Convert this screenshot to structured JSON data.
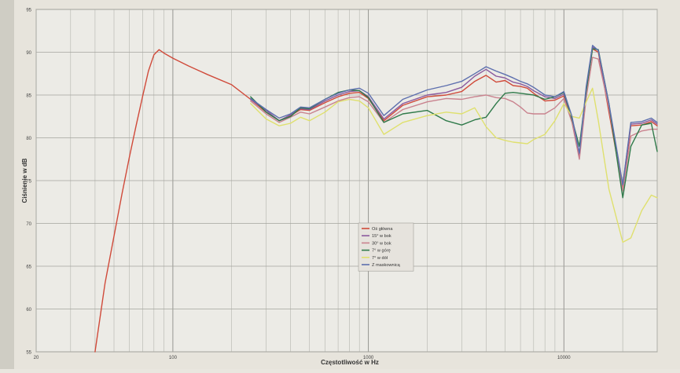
{
  "chart_data": {
    "type": "line",
    "title": "",
    "xlabel": "Częstotliwość w Hz",
    "ylabel": "Ciśnienie w dB",
    "x_scale": "log",
    "xlim": [
      20,
      30000
    ],
    "ylim": [
      55,
      95
    ],
    "x_ticks": [
      {
        "value": 20,
        "label": "20"
      },
      {
        "value": 100,
        "label": "100"
      },
      {
        "value": 1000,
        "label": "1000"
      },
      {
        "value": 10000,
        "label": "10000"
      }
    ],
    "y_ticks": [
      {
        "value": 55,
        "label": "55"
      },
      {
        "value": 60,
        "label": "60"
      },
      {
        "value": 65,
        "label": "65"
      },
      {
        "value": 70,
        "label": "70"
      },
      {
        "value": 75,
        "label": "75"
      },
      {
        "value": 80,
        "label": "80"
      },
      {
        "value": 85,
        "label": "85"
      },
      {
        "value": 90,
        "label": "90"
      },
      {
        "value": 95,
        "label": "95"
      }
    ],
    "grid": true,
    "legend_position": "center-bottom",
    "series": [
      {
        "name": "Oś główna",
        "color": "#d04a3a",
        "x": [
          40,
          45,
          50,
          55,
          60,
          65,
          70,
          75,
          80,
          85,
          90,
          100,
          120,
          150,
          200,
          250,
          300,
          350,
          400,
          450,
          500,
          600,
          700,
          800,
          900,
          1000,
          1200,
          1500,
          2000,
          2500,
          3000,
          3500,
          4000,
          4500,
          5000,
          5500,
          6000,
          6500,
          7000,
          8000,
          9000,
          10000,
          11000,
          12000,
          13000,
          14000,
          15000,
          17000,
          20000,
          22000,
          25000,
          28000,
          30000
        ],
        "y": [
          55.0,
          63.0,
          68.5,
          73.5,
          77.8,
          81.5,
          84.8,
          87.8,
          89.7,
          90.3,
          89.9,
          89.3,
          88.4,
          87.4,
          86.2,
          84.5,
          83.0,
          82.0,
          82.6,
          83.3,
          83.2,
          84.1,
          84.8,
          85.2,
          85.3,
          84.6,
          82.0,
          83.8,
          84.8,
          85.0,
          85.4,
          86.6,
          87.3,
          86.5,
          86.7,
          86.1,
          86.0,
          85.8,
          85.2,
          84.3,
          84.4,
          84.9,
          82.0,
          77.8,
          85.5,
          90.4,
          90.0,
          83.0,
          74.0,
          81.4,
          81.5,
          81.9,
          81.4
        ]
      },
      {
        "name": "15° w bok",
        "color": "#8a5a9e",
        "x": [
          250,
          300,
          350,
          400,
          450,
          500,
          600,
          700,
          800,
          900,
          1000,
          1200,
          1500,
          2000,
          2500,
          3000,
          3500,
          4000,
          4500,
          5000,
          5500,
          6000,
          6500,
          7000,
          8000,
          9000,
          10000,
          11000,
          12000,
          13000,
          14000,
          15000,
          17000,
          20000,
          22000,
          25000,
          28000,
          30000
        ],
        "y": [
          84.5,
          83.2,
          82.0,
          82.7,
          83.4,
          83.3,
          84.3,
          85.0,
          85.4,
          85.5,
          84.8,
          82.2,
          84.0,
          85.0,
          85.3,
          85.9,
          87.2,
          88.0,
          87.2,
          87.0,
          86.5,
          86.3,
          86.0,
          85.5,
          84.8,
          84.6,
          85.1,
          82.2,
          78.0,
          85.6,
          90.6,
          90.2,
          83.5,
          74.5,
          81.6,
          81.7,
          82.1,
          81.6
        ]
      },
      {
        "name": "30° w bok",
        "color": "#c9828e",
        "x": [
          250,
          300,
          350,
          400,
          450,
          500,
          600,
          700,
          800,
          900,
          1000,
          1200,
          1500,
          2000,
          2500,
          3000,
          3500,
          4000,
          4500,
          5000,
          5500,
          6000,
          6500,
          7000,
          8000,
          9000,
          10000,
          11000,
          12000,
          13000,
          14000,
          15000,
          17000,
          20000,
          22000,
          25000,
          28000,
          30000
        ],
        "y": [
          84.3,
          82.8,
          81.8,
          82.4,
          83.0,
          82.8,
          83.6,
          84.3,
          84.7,
          84.8,
          84.2,
          81.8,
          83.3,
          84.2,
          84.6,
          84.5,
          84.8,
          85.0,
          84.7,
          84.6,
          84.2,
          83.6,
          82.9,
          82.8,
          82.8,
          83.5,
          84.6,
          81.8,
          77.5,
          84.7,
          89.4,
          89.2,
          83.5,
          73.8,
          80.2,
          80.8,
          81.0,
          81.0
        ]
      },
      {
        "name": "7° w górę",
        "color": "#2f7a4a",
        "x": [
          250,
          300,
          350,
          400,
          450,
          500,
          600,
          700,
          800,
          900,
          1000,
          1200,
          1500,
          2000,
          2500,
          3000,
          3500,
          4000,
          4500,
          5000,
          5500,
          6000,
          6500,
          7000,
          8000,
          9000,
          10000,
          11000,
          12000,
          13000,
          14000,
          15000,
          17000,
          20000,
          22000,
          25000,
          28000,
          30000
        ],
        "y": [
          84.8,
          83.0,
          82.0,
          82.5,
          83.5,
          83.4,
          84.5,
          85.3,
          85.6,
          85.5,
          84.7,
          81.8,
          82.8,
          83.2,
          82.0,
          81.5,
          82.1,
          82.4,
          84.0,
          85.2,
          85.3,
          85.2,
          85.1,
          85.0,
          84.5,
          84.8,
          85.3,
          82.2,
          79.0,
          85.5,
          90.4,
          90.3,
          84.0,
          73.0,
          79.0,
          81.5,
          81.7,
          78.4
        ]
      },
      {
        "name": "7° w dół",
        "color": "#dfe06e",
        "x": [
          250,
          300,
          350,
          400,
          450,
          500,
          600,
          700,
          800,
          900,
          1000,
          1200,
          1500,
          2000,
          2500,
          3000,
          3500,
          4000,
          4500,
          5000,
          5500,
          6000,
          6500,
          7000,
          8000,
          9000,
          10000,
          11000,
          12000,
          13000,
          14000,
          15000,
          17000,
          20000,
          22000,
          25000,
          28000,
          30000
        ],
        "y": [
          84.0,
          82.2,
          81.4,
          81.7,
          82.4,
          82.0,
          83.0,
          84.2,
          84.5,
          84.3,
          83.5,
          80.4,
          81.8,
          82.6,
          83.0,
          82.8,
          83.5,
          81.3,
          80.0,
          79.7,
          79.5,
          79.4,
          79.3,
          79.8,
          80.4,
          82.0,
          84.0,
          82.5,
          82.3,
          84.2,
          85.8,
          82.0,
          74.0,
          67.8,
          68.3,
          71.5,
          73.3,
          73.0
        ]
      },
      {
        "name": "Z maskownicą",
        "color": "#5d6fae",
        "x": [
          250,
          300,
          350,
          400,
          450,
          500,
          600,
          700,
          800,
          900,
          1000,
          1200,
          1500,
          2000,
          2500,
          3000,
          3500,
          4000,
          4500,
          5000,
          5500,
          6000,
          6500,
          7000,
          8000,
          9000,
          10000,
          11000,
          12000,
          13000,
          14000,
          15000,
          17000,
          20000,
          22000,
          25000,
          28000,
          30000
        ],
        "y": [
          84.6,
          83.3,
          82.3,
          82.8,
          83.6,
          83.5,
          84.5,
          85.2,
          85.6,
          85.8,
          85.2,
          82.6,
          84.5,
          85.6,
          86.1,
          86.6,
          87.5,
          88.3,
          87.8,
          87.4,
          87.0,
          86.6,
          86.3,
          85.9,
          85.0,
          84.8,
          85.4,
          82.5,
          78.2,
          86.0,
          90.8,
          90.2,
          84.0,
          74.5,
          81.8,
          81.9,
          82.3,
          81.8
        ]
      }
    ]
  }
}
